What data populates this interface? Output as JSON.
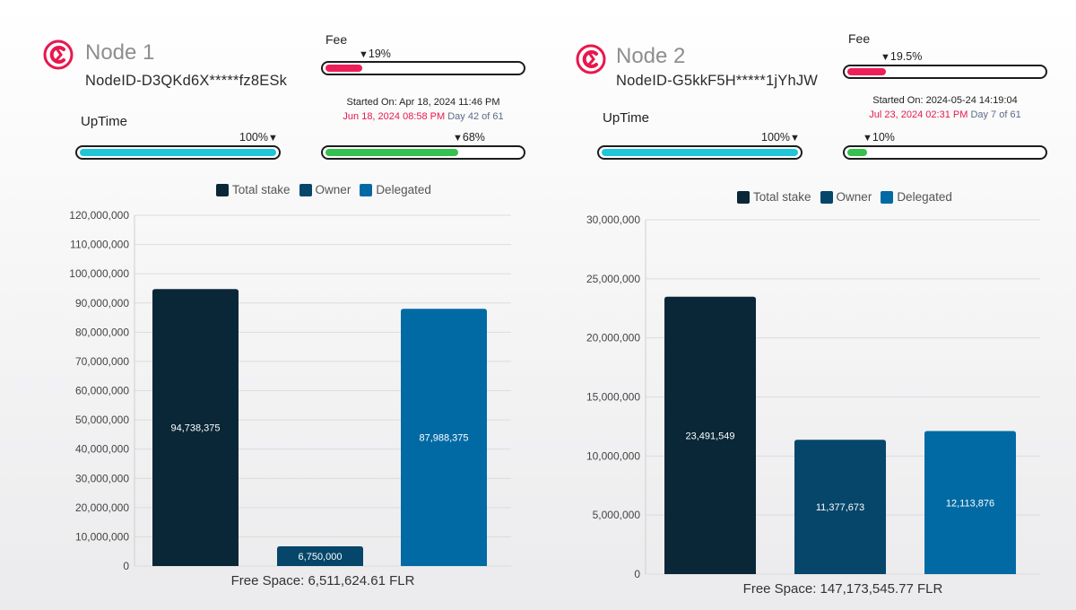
{
  "colors": {
    "total_stake": "#0a2737",
    "owner": "#06466a",
    "delegated": "#016aa4",
    "uptime_fill": "#20c5d8",
    "fee_fill": "#ec1f58",
    "period_fill": "#35c04f",
    "logo": "#e8174d"
  },
  "nodes": [
    {
      "title": "Node 1",
      "node_id": "NodeID-D3QKd6X*****fz8ESk",
      "fee_label": "Fee",
      "fee_pct": "19%",
      "fee_fraction": 0.19,
      "started_on": "Started On: Apr 18, 2024 11:46 PM",
      "end_date": "Jun 18, 2024 08:58 PM",
      "day_text": "Day 42 of 61",
      "uptime_label": "UpTime",
      "uptime_pct": "100%",
      "uptime_fraction": 1.0,
      "period_pct": "68%",
      "period_fraction": 0.68,
      "free_space": "Free Space:  6,511,624.61 FLR"
    },
    {
      "title": "Node 2",
      "node_id": "NodeID-G5kkF5H*****1jYhJW",
      "fee_label": "Fee",
      "fee_pct": "19.5%",
      "fee_fraction": 0.195,
      "started_on": "Started On: 2024-05-24 14:19:04",
      "end_date": "Jul 23, 2024 02:31 PM",
      "day_text": "Day 7 of 61",
      "uptime_label": "UpTime",
      "uptime_pct": "100%",
      "uptime_fraction": 1.0,
      "period_pct": "10%",
      "period_fraction": 0.1,
      "free_space": "Free Space: 147,173,545.77 FLR"
    }
  ],
  "chart_data": [
    {
      "type": "bar",
      "title": "Node 1",
      "categories": [
        "Total stake",
        "Owner",
        "Delegated"
      ],
      "values": [
        94738375,
        6750000,
        87988375
      ],
      "value_labels": [
        "94,738,375",
        "6,750,000",
        "87,988,375"
      ],
      "legend": [
        "Total stake",
        "Owner",
        "Delegated"
      ],
      "ylim": [
        0,
        120000000
      ],
      "yticks": [
        0,
        10000000,
        20000000,
        30000000,
        40000000,
        50000000,
        60000000,
        70000000,
        80000000,
        90000000,
        100000000,
        110000000,
        120000000
      ],
      "ytick_labels": [
        "0",
        "10,000,000",
        "20,000,000",
        "30,000,000",
        "40,000,000",
        "50,000,000",
        "60,000,000",
        "70,000,000",
        "80,000,000",
        "90,000,000",
        "100,000,000",
        "110,000,000",
        "120,000,000"
      ],
      "grid": true
    },
    {
      "type": "bar",
      "title": "Node 2",
      "categories": [
        "Total stake",
        "Owner",
        "Delegated"
      ],
      "values": [
        23491549,
        11377673,
        12113876
      ],
      "value_labels": [
        "23,491,549",
        "11,377,673",
        "12,113,876"
      ],
      "legend": [
        "Total stake",
        "Owner",
        "Delegated"
      ],
      "ylim": [
        0,
        30000000
      ],
      "yticks": [
        0,
        5000000,
        10000000,
        15000000,
        20000000,
        25000000,
        30000000
      ],
      "ytick_labels": [
        "0",
        "5,000,000",
        "10,000,000",
        "15,000,000",
        "20,000,000",
        "25,000,000",
        "30,000,000"
      ],
      "grid": true
    }
  ]
}
